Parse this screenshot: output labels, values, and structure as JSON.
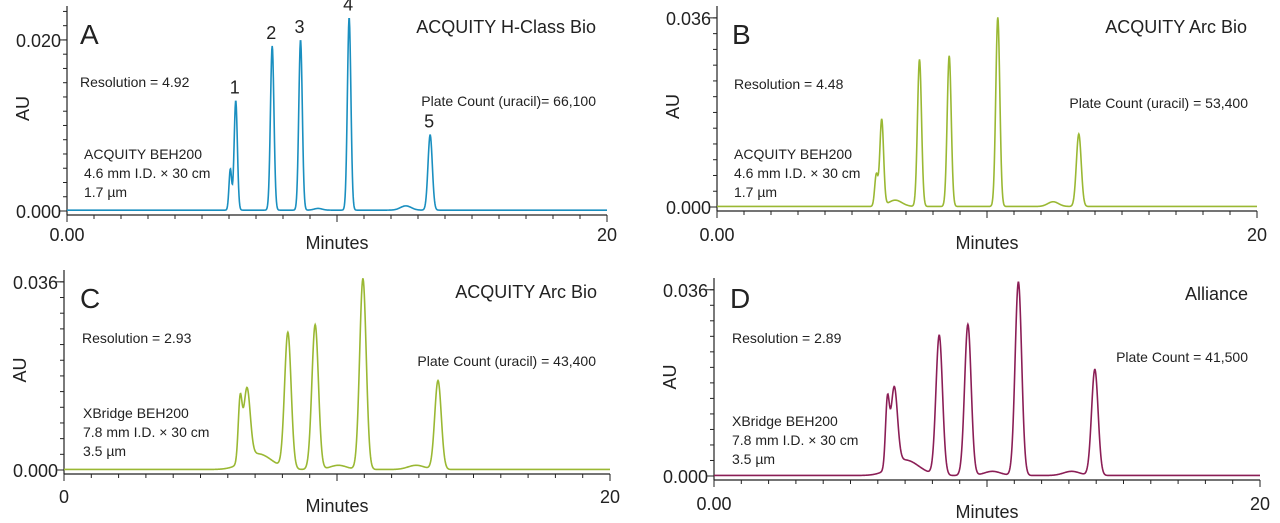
{
  "figure": {
    "xlabel": "Minutes",
    "ylabel": "AU"
  },
  "chart_data": [
    {
      "type": "line",
      "panel_letter": "A",
      "instrument": "ACQUITY H-Class Bio",
      "color": "#1a8fc0",
      "xlim": [
        0,
        20
      ],
      "ylim": [
        -0.002,
        0.0235
      ],
      "x_tick_labels": [
        "0.00",
        "20"
      ],
      "y_tick_labels": [
        {
          "value": 0.0,
          "label": "0.000"
        },
        {
          "value": 0.02,
          "label": "0.020"
        }
      ],
      "resolution_text": "Resolution = 4.92",
      "plate_text": "Plate Count (uracil)= 66,100",
      "column_lines": [
        "ACQUITY BEH200",
        "4.6 mm I.D. × 30 cm",
        "1.7 µm"
      ],
      "baseline": 0.0001,
      "peaks": [
        {
          "t": 6.05,
          "h": 0.0048,
          "w": 0.05
        },
        {
          "t": 6.25,
          "h": 0.0128,
          "w": 0.06
        },
        {
          "t": 7.6,
          "h": 0.0192,
          "w": 0.065
        },
        {
          "t": 8.65,
          "h": 0.0199,
          "w": 0.065
        },
        {
          "t": 10.45,
          "h": 0.0225,
          "w": 0.065
        },
        {
          "t": 9.3,
          "h": 0.0002,
          "w": 0.15
        },
        {
          "t": 12.55,
          "h": 0.0005,
          "w": 0.2
        },
        {
          "t": 13.45,
          "h": 0.0088,
          "w": 0.08
        }
      ],
      "peak_labels": [
        {
          "text": "1",
          "t": 6.25,
          "h": 0.0128
        },
        {
          "text": "2",
          "t": 7.6,
          "h": 0.0192
        },
        {
          "text": "3",
          "t": 8.65,
          "h": 0.0199
        },
        {
          "text": "4",
          "t": 10.45,
          "h": 0.0225
        },
        {
          "text": "5",
          "t": 13.45,
          "h": 0.0088
        }
      ]
    },
    {
      "type": "line",
      "panel_letter": "B",
      "instrument": "ACQUITY Arc Bio",
      "color": "#9ab833",
      "xlim": [
        0,
        20
      ],
      "ylim": [
        -0.0015,
        0.0375
      ],
      "x_tick_labels": [
        "0.00",
        "20"
      ],
      "y_tick_labels": [
        {
          "value": 0.0,
          "label": "0.000"
        },
        {
          "value": 0.036,
          "label": "0.036"
        }
      ],
      "resolution_text": "Resolution = 4.48",
      "plate_text": "Plate Count (uracil) = 53,400",
      "column_lines": [
        "ACQUITY BEH200",
        "4.6 mm I.D. × 30 cm",
        "1.7 µm"
      ],
      "baseline": 0.0001,
      "peaks": [
        {
          "t": 5.9,
          "h": 0.006,
          "w": 0.06
        },
        {
          "t": 6.1,
          "h": 0.0165,
          "w": 0.07
        },
        {
          "t": 6.6,
          "h": 0.0012,
          "w": 0.25
        },
        {
          "t": 7.5,
          "h": 0.028,
          "w": 0.075
        },
        {
          "t": 8.6,
          "h": 0.0287,
          "w": 0.075
        },
        {
          "t": 10.4,
          "h": 0.036,
          "w": 0.075
        },
        {
          "t": 12.45,
          "h": 0.0009,
          "w": 0.2
        },
        {
          "t": 13.4,
          "h": 0.0138,
          "w": 0.09
        }
      ],
      "peak_labels": []
    },
    {
      "type": "line",
      "panel_letter": "C",
      "instrument": "ACQUITY Arc Bio",
      "color": "#9ab833",
      "xlim": [
        0,
        20
      ],
      "ylim": [
        -0.0015,
        0.0375
      ],
      "x_tick_labels": [
        "0",
        "20"
      ],
      "y_tick_labels": [
        {
          "value": 0.0,
          "label": "0.000"
        },
        {
          "value": 0.036,
          "label": "0.036"
        }
      ],
      "resolution_text": "Resolution = 2.93",
      "plate_text": "Plate Count (uracil) = 43,400",
      "column_lines": [
        "XBridge  BEH200",
        "7.8 mm I.D. × 30 cm",
        "3.5 µm"
      ],
      "baseline": 0.0001,
      "peaks": [
        {
          "t": 6.45,
          "h": 0.0115,
          "w": 0.07
        },
        {
          "t": 6.7,
          "h": 0.0135,
          "w": 0.12
        },
        {
          "t": 7.1,
          "h": 0.003,
          "w": 0.5
        },
        {
          "t": 8.2,
          "h": 0.026,
          "w": 0.12
        },
        {
          "t": 9.2,
          "h": 0.0277,
          "w": 0.12
        },
        {
          "t": 10.95,
          "h": 0.0365,
          "w": 0.12
        },
        {
          "t": 10.05,
          "h": 0.0008,
          "w": 0.3
        },
        {
          "t": 12.9,
          "h": 0.0008,
          "w": 0.3
        },
        {
          "t": 13.7,
          "h": 0.017,
          "w": 0.12
        }
      ],
      "peak_labels": []
    },
    {
      "type": "line",
      "panel_letter": "D",
      "instrument": "Alliance",
      "color": "#8b1e56",
      "xlim": [
        0,
        20
      ],
      "ylim": [
        -0.0015,
        0.0375
      ],
      "x_tick_labels": [
        "0.00",
        "20"
      ],
      "y_tick_labels": [
        {
          "value": 0.0,
          "label": "0.000"
        },
        {
          "value": 0.036,
          "label": "0.036"
        }
      ],
      "resolution_text": "Resolution = 2.89",
      "plate_text": "Plate Count = 41,500",
      "column_lines": [
        "XBridge BEH200",
        "7.8 mm I.D. × 30 cm",
        "3.5 µm"
      ],
      "baseline": 0.0001,
      "peaks": [
        {
          "t": 6.35,
          "h": 0.0125,
          "w": 0.07
        },
        {
          "t": 6.6,
          "h": 0.015,
          "w": 0.12
        },
        {
          "t": 7.0,
          "h": 0.003,
          "w": 0.5
        },
        {
          "t": 8.25,
          "h": 0.027,
          "w": 0.12
        },
        {
          "t": 9.3,
          "h": 0.0292,
          "w": 0.12
        },
        {
          "t": 11.15,
          "h": 0.0374,
          "w": 0.12
        },
        {
          "t": 10.2,
          "h": 0.0008,
          "w": 0.3
        },
        {
          "t": 13.1,
          "h": 0.0008,
          "w": 0.3
        },
        {
          "t": 13.95,
          "h": 0.0205,
          "w": 0.12
        }
      ],
      "peak_labels": []
    }
  ]
}
